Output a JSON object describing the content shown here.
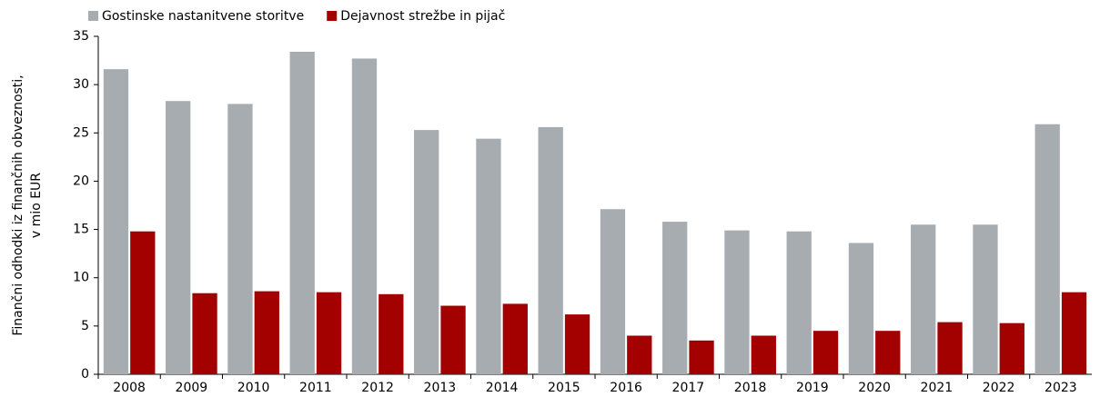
{
  "chart_data": {
    "type": "bar",
    "ylabel": [
      "Finančni odhodki iz finančnih obveznosti,",
      "v mio EUR"
    ],
    "categories": [
      "2008",
      "2009",
      "2010",
      "2011",
      "2012",
      "2013",
      "2014",
      "2015",
      "2016",
      "2017",
      "2018",
      "2019",
      "2020",
      "2021",
      "2022",
      "2023"
    ],
    "series": [
      {
        "name": "Gostinske nastanitvene storitve",
        "color": "#a7acb1",
        "values": [
          31.6,
          28.3,
          28.0,
          33.4,
          32.7,
          25.3,
          24.4,
          25.6,
          17.1,
          15.8,
          14.9,
          14.8,
          13.6,
          15.5,
          15.5,
          25.9
        ]
      },
      {
        "name": "Dejavnost strežbe in pijač",
        "color": "#a30000",
        "values": [
          14.8,
          8.4,
          8.6,
          8.5,
          8.3,
          7.1,
          7.3,
          6.2,
          4.0,
          3.5,
          4.0,
          4.5,
          4.5,
          5.4,
          5.3,
          8.5
        ]
      }
    ],
    "ylim": [
      0,
      35
    ],
    "yticks": [
      0,
      5,
      10,
      15,
      20,
      25,
      30,
      35
    ],
    "grid": false,
    "legend": "top"
  }
}
